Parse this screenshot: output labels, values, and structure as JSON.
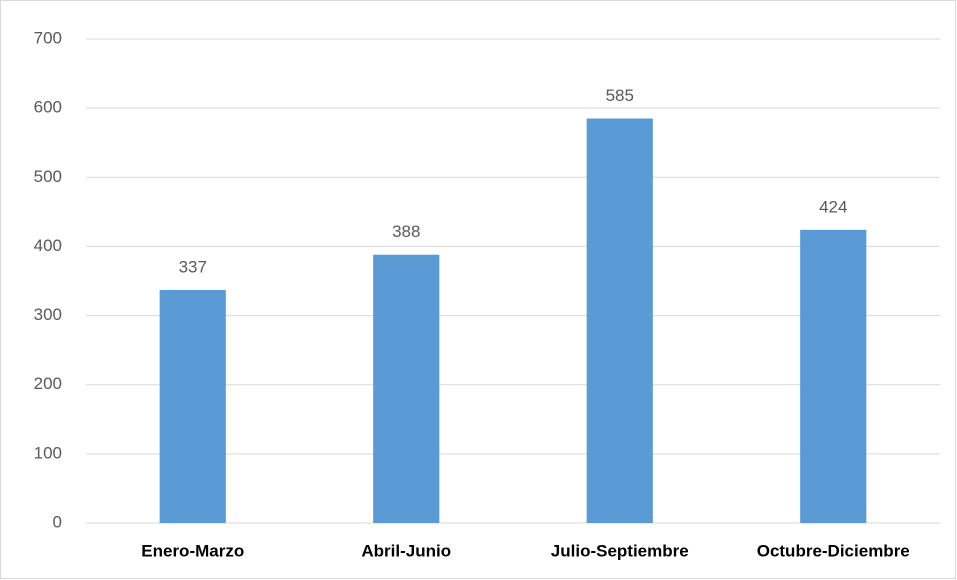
{
  "chart_data": {
    "type": "bar",
    "categories": [
      "Enero-Marzo",
      "Abril-Junio",
      "Julio-Septiembre",
      "Octubre-Diciembre"
    ],
    "values": [
      337,
      388,
      585,
      424
    ],
    "color": "#5b9bd5",
    "ylim": [
      0,
      700
    ],
    "yticks": [
      0,
      100,
      200,
      300,
      400,
      500,
      600,
      700
    ],
    "grid": true
  }
}
